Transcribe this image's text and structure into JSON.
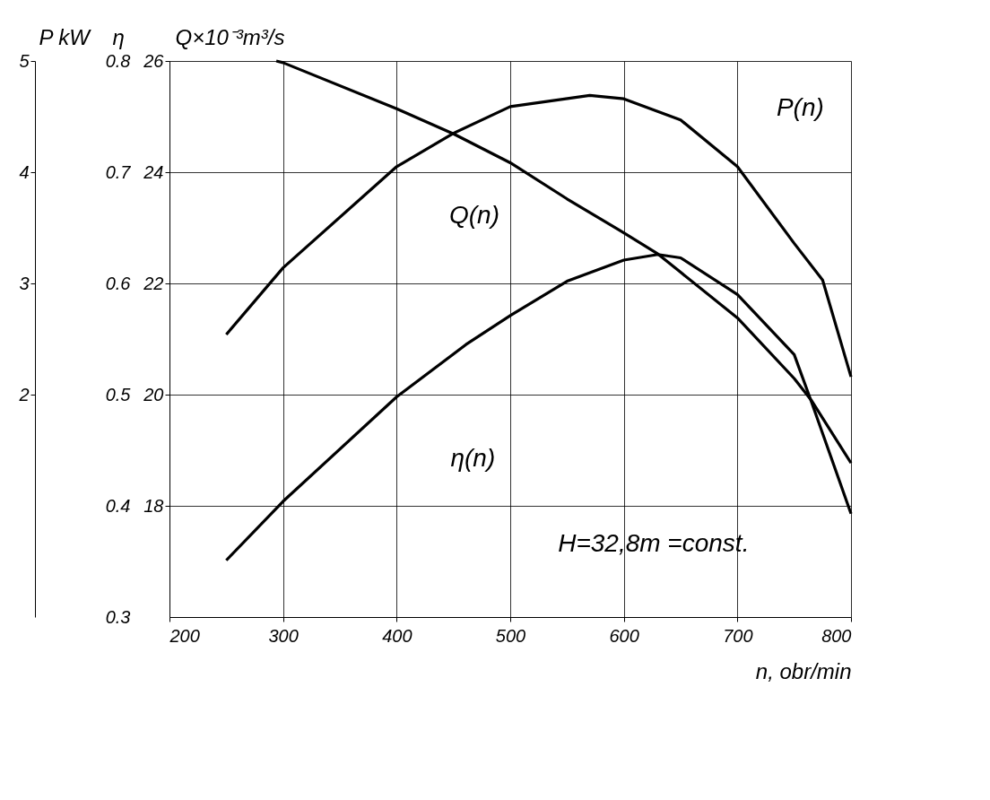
{
  "chart_data": {
    "type": "line",
    "xlabel": "n, obr/min",
    "ylabel": "Q×10⁻³m³/s",
    "y2label": "η",
    "y3label": "P kW",
    "xlim": [
      200,
      800
    ],
    "xticks": [
      200,
      300,
      400,
      500,
      600,
      700,
      800
    ],
    "ylim": [
      16,
      26
    ],
    "yticks": [
      18,
      20,
      22,
      24,
      26
    ],
    "y2lim": [
      0.3,
      0.8
    ],
    "y2ticks": [
      0.3,
      0.4,
      0.5,
      0.6,
      0.7,
      0.8
    ],
    "y3lim": [
      0,
      5
    ],
    "y3ticks": [
      2,
      3,
      4,
      5
    ],
    "grid": true,
    "legend": false,
    "line_style": "solid",
    "series": [
      {
        "name": "P(n)",
        "color": "#000000",
        "axis": "y3",
        "x": [
          250,
          300,
          400,
          450,
          500,
          570,
          600,
          650,
          700,
          750,
          775,
          800
        ],
        "values": [
          2.54,
          3.14,
          4.05,
          4.35,
          4.59,
          4.69,
          4.66,
          4.47,
          4.05,
          3.36,
          3.03,
          2.16
        ]
      },
      {
        "name": "Q(n)",
        "color": "#000000",
        "x": [
          294,
          300,
          400,
          450,
          500,
          550,
          600,
          630,
          650,
          700,
          750,
          765,
          800
        ],
        "values": [
          26.0,
          25.97,
          25.14,
          24.69,
          24.17,
          23.52,
          22.91,
          22.53,
          22.2,
          21.38,
          20.29,
          19.9,
          18.77
        ]
      },
      {
        "name": "η(n)",
        "color": "#000000",
        "axis": "y2",
        "x": [
          250,
          300,
          400,
          461,
          500,
          550,
          600,
          630,
          650,
          700,
          750,
          765,
          800
        ],
        "values": [
          0.351,
          0.404,
          0.498,
          0.545,
          0.571,
          0.602,
          0.621,
          0.626,
          0.623,
          0.59,
          0.536,
          0.494,
          0.393
        ]
      }
    ],
    "annotations": [
      "H=32,8m =const."
    ]
  }
}
